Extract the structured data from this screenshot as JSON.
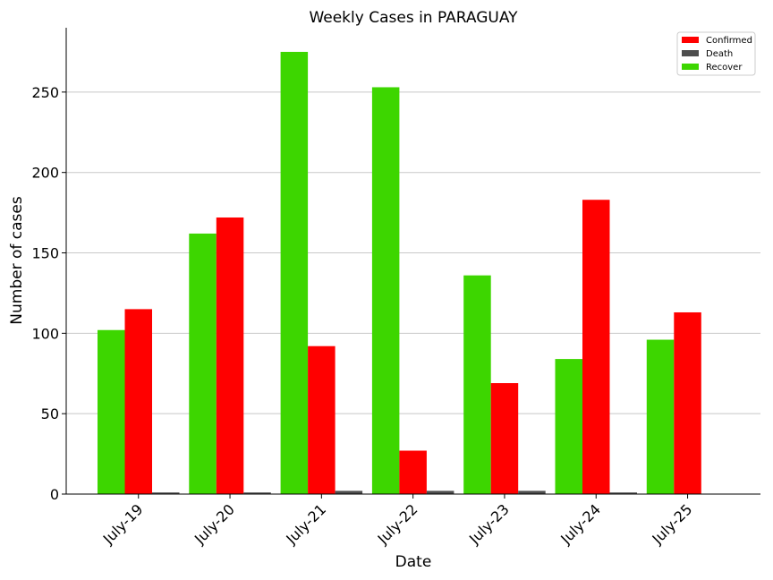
{
  "chart_data": {
    "type": "bar",
    "title": "Weekly Cases in PARAGUAY",
    "xlabel": "Date",
    "ylabel": "Number of cases",
    "categories": [
      "July-19",
      "July-20",
      "July-21",
      "July-22",
      "July-23",
      "July-24",
      "July-25"
    ],
    "ylim": [
      0,
      290
    ],
    "yticks": [
      0,
      50,
      100,
      150,
      200,
      250
    ],
    "grid": "horizontal",
    "legend_position": "top-right",
    "series": [
      {
        "name": "Recover",
        "color": "#3dd600",
        "values": [
          102,
          162,
          275,
          253,
          136,
          84,
          96
        ]
      },
      {
        "name": "Confirmed",
        "color": "#ff0000",
        "values": [
          115,
          172,
          92,
          27,
          69,
          183,
          113
        ]
      },
      {
        "name": "Death",
        "color": "#4d4d4d",
        "values": [
          1,
          1,
          2,
          2,
          2,
          1,
          0
        ]
      }
    ],
    "legend_order": [
      "Confirmed",
      "Death",
      "Recover"
    ]
  }
}
